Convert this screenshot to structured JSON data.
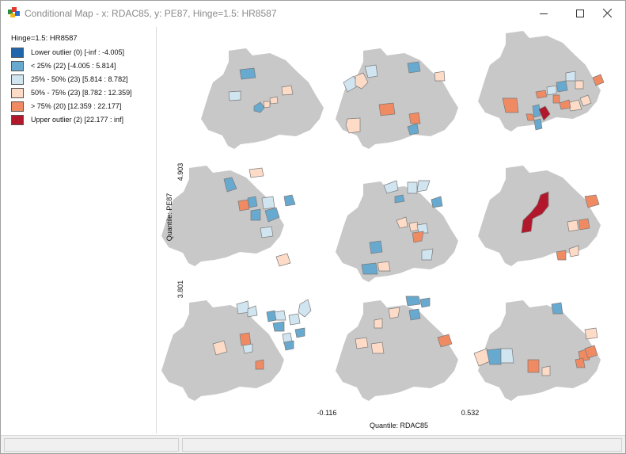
{
  "window": {
    "title": "Conditional Map - x: RDAC85, y: PE87, Hinge=1.5: HR8587",
    "icon": "geoda-map-icon",
    "controls": [
      "minimize-icon",
      "maximize-icon",
      "close-icon"
    ]
  },
  "legend": {
    "title": "Hinge=1.5: HR8587",
    "items": [
      {
        "label": "Lower outlier (0)  [-inf : -4.005]",
        "color": "#2166ac"
      },
      {
        "label": "< 25% (22)  [-4.005 : 5.814]",
        "color": "#67a9cf"
      },
      {
        "label": "25% - 50% (23)  [5.814 : 8.782]",
        "color": "#d1e5f0"
      },
      {
        "label": "50% - 75% (23)  [8.782 : 12.359]",
        "color": "#fddbc7"
      },
      {
        "label": "> 75% (20)  [12.359 : 22.177]",
        "color": "#ef8a62"
      },
      {
        "label": "Upper outlier (2)  [22.177 : inf]",
        "color": "#b2182b"
      }
    ]
  },
  "axes": {
    "x_title": "Quantile: RDAC85",
    "x_breaks": [
      "-0.116",
      "0.532"
    ],
    "y_title": "Quantile: PE87",
    "y_breaks": [
      "4.903",
      "3.801"
    ]
  },
  "colors": {
    "basemap": "#c8c8c8",
    "outline": "#7a7a7a"
  }
}
